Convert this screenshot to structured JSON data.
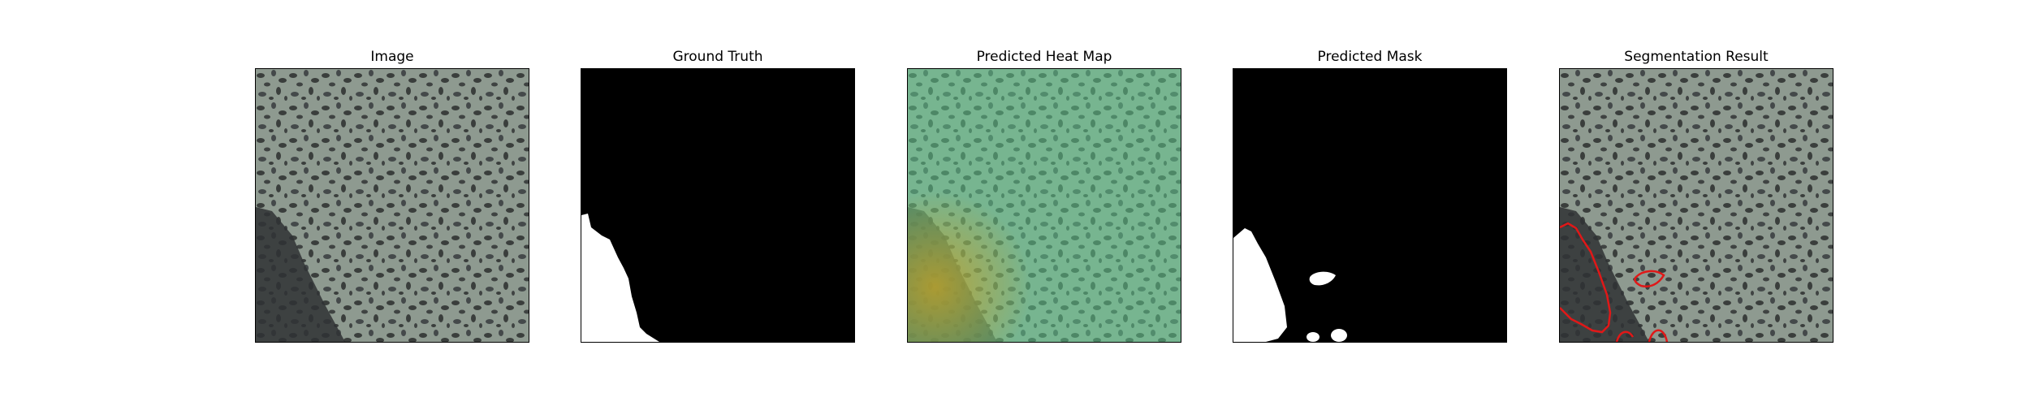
{
  "figure": {
    "panels": [
      {
        "title": "Image"
      },
      {
        "title": "Ground Truth"
      },
      {
        "title": "Predicted Heat Map"
      },
      {
        "title": "Predicted Mask"
      },
      {
        "title": "Segmentation Result"
      }
    ]
  },
  "colors": {
    "background": "#ffffff",
    "texture_base": "#8e9a90",
    "texture_spot": "#3a3e3c",
    "defect_region": "#2f3134",
    "heatmap_tint": "#5fcf8f",
    "heatmap_hot": "#b89a2a",
    "mask_foreground": "#ffffff",
    "mask_background": "#000000",
    "contour": "#e01818"
  }
}
